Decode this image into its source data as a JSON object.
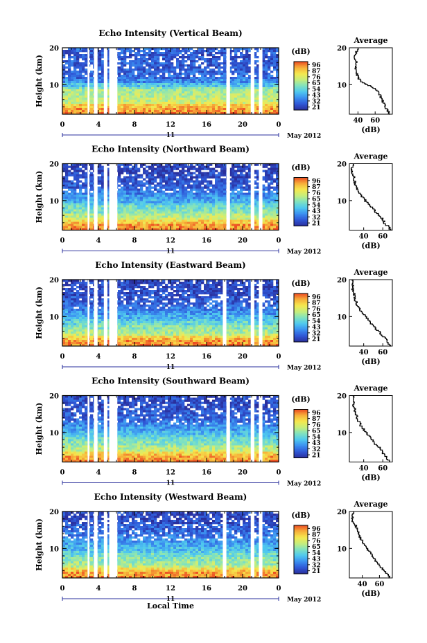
{
  "figure": {
    "footer_xlabel": "Local Time",
    "date_label": "May 2012",
    "day_label": "11"
  },
  "colors": {
    "colormap": [
      "#2a2f9c",
      "#2f57d6",
      "#3b8ff0",
      "#4fc8ef",
      "#7fe2c0",
      "#c6ee7c",
      "#f5e84e",
      "#f7b03a",
      "#ec4b22"
    ],
    "gap_color": "#ffffff"
  },
  "chart_data": [
    {
      "type": "heatmap",
      "title": "Echo Intensity (Vertical Beam)",
      "ylabel": "Height (km)",
      "ylim": [
        2,
        20
      ],
      "yticks": [
        10,
        20
      ],
      "xlim": [
        0,
        24
      ],
      "xticks": [
        "0",
        "4",
        "8",
        "12",
        "16",
        "20",
        "0"
      ],
      "colorbar": {
        "label": "(dB)",
        "ticks": [
          96,
          87,
          76,
          65,
          54,
          43,
          32,
          21
        ]
      },
      "data_gaps_hours": [
        [
          2.8,
          3.0
        ],
        [
          3.5,
          3.9
        ],
        [
          4.6,
          5.0
        ],
        [
          5.2,
          6.1
        ],
        [
          18.2,
          18.6
        ],
        [
          20.9,
          21.3
        ],
        [
          21.8,
          22.2
        ]
      ],
      "average_profile": {
        "title": "Average",
        "xlabel": "(dB)",
        "xticks": [
          40,
          60
        ],
        "xlim": [
          30,
          80
        ],
        "height_km": [
          2,
          3,
          4,
          5,
          6,
          7,
          8,
          9,
          10,
          11,
          12,
          13,
          14,
          15,
          16,
          17,
          18,
          19,
          20
        ],
        "db": [
          78,
          75,
          72,
          70,
          68,
          66,
          64,
          60,
          52,
          44,
          40,
          39,
          38,
          37,
          38,
          37,
          36,
          38,
          40
        ]
      }
    },
    {
      "type": "heatmap",
      "title": "Echo Intensity (Northward Beam)",
      "ylabel": "Height (km)",
      "ylim": [
        2,
        20
      ],
      "yticks": [
        10,
        20
      ],
      "xlim": [
        0,
        24
      ],
      "xticks": [
        "0",
        "4",
        "8",
        "12",
        "16",
        "20",
        "0"
      ],
      "colorbar": {
        "label": "(dB)",
        "ticks": [
          96,
          87,
          76,
          65,
          54,
          43,
          32,
          21
        ]
      },
      "data_gaps_hours": [
        [
          2.8,
          3.0
        ],
        [
          3.5,
          3.9
        ],
        [
          4.6,
          5.0
        ],
        [
          5.2,
          6.1
        ],
        [
          18.2,
          18.6
        ],
        [
          20.9,
          21.3
        ],
        [
          21.8,
          22.2
        ]
      ],
      "average_profile": {
        "title": "Average",
        "xlabel": "(dB)",
        "xticks": [
          40,
          60
        ],
        "xlim": [
          25,
          70
        ],
        "height_km": [
          2,
          3,
          4,
          5,
          6,
          7,
          8,
          9,
          10,
          11,
          12,
          13,
          14,
          15,
          16,
          17,
          18,
          19,
          20
        ],
        "db": [
          68,
          66,
          62,
          60,
          57,
          52,
          50,
          46,
          42,
          39,
          36,
          34,
          32,
          31,
          30,
          29,
          28,
          28,
          29
        ]
      }
    },
    {
      "type": "heatmap",
      "title": "Echo Intensity (Eastward Beam)",
      "ylabel": "Height (km)",
      "ylim": [
        2,
        20
      ],
      "yticks": [
        10,
        20
      ],
      "xlim": [
        0,
        24
      ],
      "xticks": [
        "0",
        "4",
        "8",
        "12",
        "16",
        "20",
        "0"
      ],
      "colorbar": {
        "label": "(dB)",
        "ticks": [
          96,
          87,
          76,
          65,
          54,
          43,
          32,
          21
        ]
      },
      "data_gaps_hours": [
        [
          2.8,
          3.0
        ],
        [
          3.5,
          3.9
        ],
        [
          4.6,
          5.0
        ],
        [
          5.2,
          6.1
        ],
        [
          17.8,
          18.2
        ],
        [
          20.9,
          21.3
        ],
        [
          21.8,
          22.2
        ]
      ],
      "average_profile": {
        "title": "Average",
        "xlabel": "(dB)",
        "xticks": [
          40,
          60
        ],
        "xlim": [
          25,
          70
        ],
        "height_km": [
          2,
          3,
          4,
          5,
          6,
          7,
          8,
          9,
          10,
          11,
          12,
          13,
          14,
          15,
          16,
          17,
          18,
          19,
          20
        ],
        "db": [
          68,
          66,
          63,
          59,
          56,
          52,
          48,
          45,
          42,
          39,
          36,
          34,
          32,
          31,
          30,
          29,
          28,
          29,
          28
        ]
      }
    },
    {
      "type": "heatmap",
      "title": "Echo Intensity (Southward Beam)",
      "ylabel": "Height (km)",
      "ylim": [
        2,
        20
      ],
      "yticks": [
        10,
        20
      ],
      "xlim": [
        0,
        24
      ],
      "xticks": [
        "0",
        "4",
        "8",
        "12",
        "16",
        "20",
        "0"
      ],
      "colorbar": {
        "label": "(dB)",
        "ticks": [
          96,
          87,
          76,
          65,
          54,
          43,
          32,
          21
        ]
      },
      "data_gaps_hours": [
        [
          2.8,
          3.0
        ],
        [
          3.5,
          3.9
        ],
        [
          4.6,
          5.0
        ],
        [
          5.2,
          6.1
        ],
        [
          18.2,
          18.6
        ],
        [
          20.9,
          21.3
        ],
        [
          21.8,
          22.2
        ]
      ],
      "average_profile": {
        "title": "Average",
        "xlabel": "(dB)",
        "xticks": [
          40,
          60
        ],
        "xlim": [
          25,
          70
        ],
        "height_km": [
          2,
          3,
          4,
          5,
          6,
          7,
          8,
          9,
          10,
          11,
          12,
          13,
          14,
          15,
          16,
          17,
          18,
          19,
          20
        ],
        "db": [
          68,
          65,
          62,
          59,
          57,
          52,
          50,
          46,
          43,
          40,
          37,
          35,
          33,
          32,
          31,
          30,
          29,
          30,
          29
        ]
      }
    },
    {
      "type": "heatmap",
      "title": "Echo Intensity (Westward Beam)",
      "ylabel": "Height (km)",
      "ylim": [
        2,
        20
      ],
      "yticks": [
        10,
        20
      ],
      "xlim": [
        0,
        24
      ],
      "xticks": [
        "0",
        "4",
        "8",
        "12",
        "16",
        "20",
        "0"
      ],
      "colorbar": {
        "label": "(dB)",
        "ticks": [
          96,
          87,
          76,
          65,
          54,
          43,
          32,
          21
        ]
      },
      "data_gaps_hours": [
        [
          2.8,
          3.0
        ],
        [
          3.5,
          3.9
        ],
        [
          4.6,
          5.0
        ],
        [
          5.2,
          6.1
        ],
        [
          17.8,
          18.2
        ],
        [
          20.9,
          21.3
        ],
        [
          21.8,
          22.2
        ]
      ],
      "average_profile": {
        "title": "Average",
        "xlabel": "(dB)",
        "xticks": [
          40,
          60
        ],
        "xlim": [
          25,
          75
        ],
        "height_km": [
          2,
          3,
          4,
          5,
          6,
          7,
          8,
          9,
          10,
          11,
          12,
          13,
          14,
          15,
          16,
          17,
          18,
          19,
          20
        ],
        "db": [
          72,
          70,
          66,
          62,
          58,
          55,
          52,
          49,
          46,
          43,
          40,
          38,
          36,
          34,
          33,
          30,
          28,
          29,
          30
        ]
      }
    }
  ]
}
